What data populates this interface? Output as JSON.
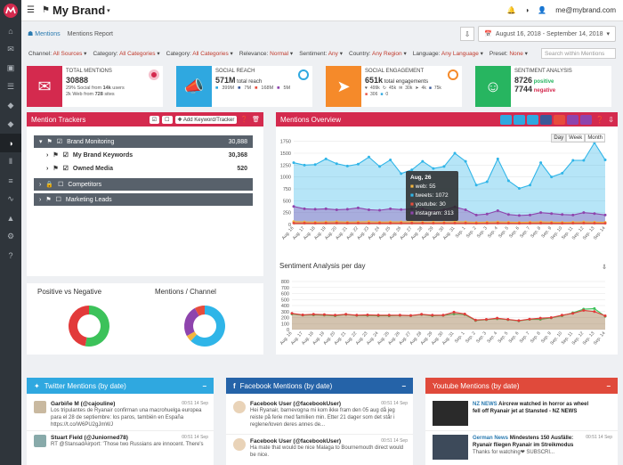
{
  "app": {
    "brand": "My Brand",
    "user_email": "me@mybrand.com"
  },
  "sidebar": {
    "items": [
      "home-icon",
      "inbox-icon",
      "image-icon",
      "document-icon",
      "tag-icon",
      "tag-icon",
      "circle-half-icon",
      "bar-chart-icon",
      "poll-icon",
      "line-chart-icon",
      "area-chart-icon",
      "gear-icon",
      "help-icon"
    ]
  },
  "subheader": {
    "tab": "Mentions",
    "breadcrumb": "Mentions Report",
    "date_range": "August 16, 2018 - September 14, 2018"
  },
  "filters": [
    {
      "label": "Channel:",
      "value": "All Sources"
    },
    {
      "label": "Category:",
      "value": "All Categories"
    },
    {
      "label": "Category:",
      "value": "All Categories"
    },
    {
      "label": "Relevance:",
      "value": "Normal"
    },
    {
      "label": "Sentiment:",
      "value": "Any"
    },
    {
      "label": "Country:",
      "value": "Any Region"
    },
    {
      "label": "Language:",
      "value": "Any Language"
    },
    {
      "label": "Preset:",
      "value": "None"
    }
  ],
  "search": {
    "placeholder": "Search within Mentions"
  },
  "cards": [
    {
      "title": "TOTAL MENTIONS",
      "value": "30888",
      "l1a": "29%",
      "l1b": " Social from ",
      "l1c": "14k",
      " l1d": "",
      "l1e": " users",
      "l2a": "2k",
      "l2b": " Web from ",
      "l2c": "728",
      " l2d": "",
      "l2e": " sites",
      "color": "#d42a4e",
      "icon": "inbox-icon"
    },
    {
      "title": "SOCIAL REACH",
      "value": "571M",
      "value_suffix": " total reach",
      "stats": [
        "399M",
        "7M",
        "168M",
        "5M"
      ],
      "color": "#2fa8e0",
      "icon": "megaphone-icon"
    },
    {
      "title": "SOCIAL ENGAGEMENT",
      "value": "651k",
      "value_suffix": " total engagements",
      "stats": [
        "499k",
        "45k",
        "30k",
        "4k",
        "75k",
        "306",
        "0"
      ],
      "color": "#f58a2a",
      "icon": "share-icon"
    },
    {
      "title": "SENTIMENT ANALYSIS",
      "value": "8726",
      "value_suffix": " positive",
      "value2": "7744",
      "value2_suffix": " negative",
      "color": "#27b560",
      "icon": "smile-icon"
    }
  ],
  "trackers": {
    "title": "Mention Trackers",
    "add_label": "Add Keyword/Tracker",
    "rows": [
      {
        "name": "Brand Monitoring",
        "count": "30,888"
      },
      {
        "name": "My Brand Keywords",
        "count": "30,368"
      },
      {
        "name": "Owned Media",
        "count": "520"
      },
      {
        "name": "Competitors",
        "count": ""
      },
      {
        "name": "Marketing Leads",
        "count": ""
      }
    ]
  },
  "overview": {
    "title": "Mentions Overview",
    "range_buttons": [
      "Day",
      "Week",
      "Month"
    ],
    "tooltip": {
      "date": "Aug, 26",
      "lines": [
        "web: 55",
        "tweets: 1072",
        "youtube: 30",
        "instagram: 313"
      ]
    }
  },
  "sentiment": {
    "title": "Sentiment Analysis per day"
  },
  "pies": {
    "left_title": "Positive vs Negative",
    "right_title": "Mentions / Channel"
  },
  "colors": {
    "red": "#d42a4e",
    "blue": "#2fa8e0",
    "orange": "#f58a2a",
    "green": "#27b560",
    "web": "#f3b53f",
    "tweets": "#2fb5e8",
    "youtube": "#e74c3c",
    "instagram": "#8e44ad"
  },
  "chart_data": [
    {
      "type": "area",
      "title": "Mentions Overview",
      "categories": [
        "Aug. 16",
        "Aug. 17",
        "Aug. 18",
        "Aug. 19",
        "Aug. 20",
        "Aug. 21",
        "Aug. 22",
        "Aug. 23",
        "Aug. 24",
        "Aug. 25",
        "Aug. 26",
        "Aug. 27",
        "Aug. 28",
        "Aug. 29",
        "Aug. 30",
        "Aug. 31",
        "Sep. 1",
        "Sep. 2",
        "Sep. 3",
        "Sep. 4",
        "Sep. 5",
        "Sep. 6",
        "Sep. 7",
        "Sep. 8",
        "Sep. 9",
        "Sep. 10",
        "Sep. 11",
        "Sep. 12",
        "Sep. 13",
        "Sep. 14"
      ],
      "ylim": [
        0,
        1800
      ],
      "yticks": [
        0,
        250,
        500,
        750,
        1000,
        1250,
        1500,
        1750
      ],
      "series": [
        {
          "name": "tweets",
          "values": [
            1300,
            1250,
            1260,
            1380,
            1280,
            1230,
            1270,
            1420,
            1220,
            1360,
            1072,
            1150,
            1330,
            1180,
            1220,
            1500,
            1330,
            830,
            900,
            1380,
            920,
            760,
            830,
            1300,
            1000,
            1080,
            1350,
            1350,
            1720,
            1360
          ]
        },
        {
          "name": "instagram",
          "values": [
            380,
            330,
            320,
            330,
            310,
            320,
            350,
            310,
            300,
            330,
            313,
            330,
            330,
            280,
            310,
            370,
            310,
            200,
            220,
            290,
            210,
            190,
            200,
            250,
            230,
            210,
            200,
            250,
            230,
            200
          ]
        },
        {
          "name": "web",
          "values": [
            60,
            55,
            50,
            55,
            60,
            50,
            55,
            60,
            50,
            55,
            55,
            60,
            50,
            55,
            50,
            60,
            55,
            45,
            50,
            55,
            50,
            45,
            50,
            55,
            50,
            45,
            50,
            55,
            50,
            45
          ]
        },
        {
          "name": "youtube",
          "values": [
            30,
            30,
            28,
            30,
            32,
            30,
            30,
            28,
            30,
            30,
            30,
            30,
            30,
            28,
            30,
            30,
            30,
            25,
            28,
            30,
            28,
            25,
            28,
            30,
            28,
            25,
            28,
            30,
            28,
            25
          ]
        }
      ]
    },
    {
      "type": "line",
      "title": "Sentiment Analysis per day",
      "categories": [
        "Aug. 16",
        "Aug. 17",
        "Aug. 18",
        "Aug. 19",
        "Aug. 20",
        "Aug. 21",
        "Aug. 22",
        "Aug. 23",
        "Aug. 24",
        "Aug. 25",
        "Aug. 26",
        "Aug. 27",
        "Aug. 28",
        "Aug. 29",
        "Aug. 30",
        "Aug. 31",
        "Sep. 1",
        "Sep. 2",
        "Sep. 3",
        "Sep. 4",
        "Sep. 5",
        "Sep. 6",
        "Sep. 7",
        "Sep. 8",
        "Sep. 9",
        "Sep. 10",
        "Sep. 11",
        "Sep. 12",
        "Sep. 13",
        "Sep. 14"
      ],
      "ylim": [
        0,
        800
      ],
      "yticks": [
        0,
        100,
        200,
        300,
        400,
        500,
        600,
        700,
        800
      ],
      "series": [
        {
          "name": "positive",
          "values": [
            260,
            240,
            245,
            240,
            230,
            250,
            235,
            235,
            230,
            230,
            235,
            230,
            250,
            230,
            235,
            260,
            250,
            150,
            165,
            180,
            165,
            145,
            170,
            170,
            195,
            230,
            280,
            340,
            350,
            220
          ]
        },
        {
          "name": "negative",
          "values": [
            270,
            245,
            255,
            250,
            240,
            255,
            240,
            245,
            240,
            240,
            240,
            235,
            255,
            240,
            240,
            290,
            260,
            160,
            170,
            190,
            170,
            150,
            175,
            190,
            200,
            240,
            270,
            320,
            300,
            230
          ]
        }
      ]
    },
    {
      "type": "pie",
      "title": "Positive vs Negative",
      "labels": [
        "positive",
        "negative"
      ],
      "values": [
        8726,
        7744
      ]
    },
    {
      "type": "pie",
      "title": "Mentions / Channel",
      "labels": [
        "tweets",
        "web",
        "instagram",
        "youtube"
      ],
      "values": [
        62,
        5,
        25,
        8
      ]
    }
  ],
  "twitter": {
    "title": "Twitter Mentions (by date)",
    "posts": [
      {
        "name": "Garbiñe M (@cajouline)",
        "time": "00:51 14 Sep",
        "text": "Los tripulantes de Ryanair confirman una macrohuelga europea para el 28 de septiembre: los paros, también en España",
        "link": "https://t.co/W6PU2gJmWJ"
      },
      {
        "name": "Stuart Field (@Juniorned78)",
        "time": "00:51 14 Sep",
        "text": "RT @StansadAirport: 'Those two Russians are innocent. There's",
        "link": ""
      }
    ]
  },
  "facebook": {
    "title": "Facebook Mentions (by date)",
    "posts": [
      {
        "name": "Facebook User (@facebookUser)",
        "time": "00:51 14 Sep",
        "text": "Hei Ryanair, barnevogna mi kom ikke fram den 05 aug då jeg reiste på ferie med familien min. Etter 21 dager som det står i reglene/loven deres annes de...",
        "link": ""
      },
      {
        "name": "Facebook User (@facebookUser)",
        "time": "00:51 14 Sep",
        "text": "Ha mate that would be nice Malaga to Bournemouth direct would be nice.",
        "link": ""
      }
    ]
  },
  "youtube": {
    "title": "Youtube Mentions (by date)",
    "posts": [
      {
        "name": "NZ NEWS",
        "name2": " Aircrew watched in horror as wheel fell off Ryanair jet at Stansted - NZ NEWS",
        "time": "00:51 14 Sep",
        "text": "",
        "link": ""
      },
      {
        "name": "German News",
        "name2": " Mindestens 150 Ausfälle: Ryanair fliegen Ryanair im Streikmodus",
        "time": "00:51 14 Sep",
        "text": "Thanks for watching❤ SUBSCRI...",
        "link": ""
      }
    ]
  }
}
